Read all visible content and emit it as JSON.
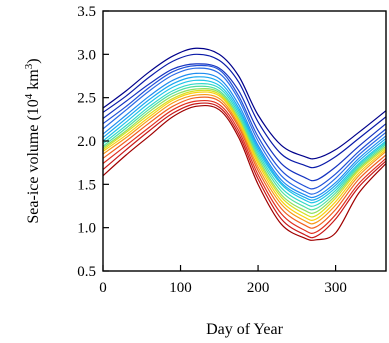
{
  "chart_data": {
    "type": "line",
    "title": "",
    "xlabel": "Day of Year",
    "ylabel": "Sea-ice volume (10⁴ km³)",
    "ylabel_parts": {
      "pre": "Sea-ice volume (10",
      "exp1": "4",
      "mid": " km",
      "exp2": "3",
      "post": ")"
    },
    "xlim": [
      0,
      365
    ],
    "ylim": [
      0.5,
      3.5
    ],
    "xticks": [
      0,
      100,
      200,
      300
    ],
    "xtick_labels": [
      "0",
      "100",
      "200",
      "300"
    ],
    "yticks": [
      0.5,
      1.0,
      1.5,
      2.0,
      2.5,
      3.0,
      3.5
    ],
    "ytick_labels": [
      "0.5",
      "1.0",
      "1.5",
      "2.0",
      "2.5",
      "3.0",
      "3.5"
    ],
    "grid": false,
    "legend": "none",
    "x": [
      0,
      30,
      60,
      90,
      120,
      150,
      175,
      200,
      230,
      260,
      275,
      300,
      330,
      365
    ],
    "series": [
      {
        "color": "#00008b",
        "values": [
          2.38,
          2.58,
          2.8,
          2.98,
          3.07,
          3.0,
          2.75,
          2.3,
          1.95,
          1.82,
          1.8,
          1.9,
          2.1,
          2.35
        ]
      },
      {
        "color": "#0a1aa8",
        "values": [
          2.33,
          2.52,
          2.74,
          2.92,
          3.0,
          2.93,
          2.68,
          2.22,
          1.85,
          1.72,
          1.7,
          1.82,
          2.03,
          2.28
        ]
      },
      {
        "color": "#1533c0",
        "values": [
          2.26,
          2.46,
          2.66,
          2.83,
          2.89,
          2.84,
          2.58,
          2.12,
          1.74,
          1.58,
          1.55,
          1.7,
          1.94,
          2.2
        ]
      },
      {
        "color": "#2050d8",
        "values": [
          2.2,
          2.4,
          2.62,
          2.8,
          2.87,
          2.82,
          2.52,
          2.05,
          1.66,
          1.48,
          1.46,
          1.62,
          1.88,
          2.14
        ]
      },
      {
        "color": "#2a6ce6",
        "values": [
          2.14,
          2.36,
          2.58,
          2.76,
          2.84,
          2.78,
          2.48,
          2.0,
          1.6,
          1.42,
          1.4,
          1.57,
          1.84,
          2.1
        ]
      },
      {
        "color": "#1e8cf0",
        "values": [
          2.08,
          2.3,
          2.52,
          2.7,
          2.78,
          2.72,
          2.42,
          1.95,
          1.55,
          1.38,
          1.36,
          1.52,
          1.8,
          2.06
        ]
      },
      {
        "color": "#18a8f0",
        "values": [
          2.04,
          2.26,
          2.48,
          2.66,
          2.74,
          2.68,
          2.38,
          1.92,
          1.52,
          1.35,
          1.33,
          1.49,
          1.77,
          2.03
        ]
      },
      {
        "color": "#20c4e8",
        "values": [
          2.0,
          2.22,
          2.44,
          2.62,
          2.7,
          2.64,
          2.35,
          1.89,
          1.5,
          1.32,
          1.3,
          1.46,
          1.74,
          2.0
        ]
      },
      {
        "color": "#30d8c8",
        "values": [
          1.97,
          2.18,
          2.4,
          2.58,
          2.66,
          2.61,
          2.32,
          1.86,
          1.46,
          1.28,
          1.26,
          1.43,
          1.72,
          1.98
        ]
      },
      {
        "color": "#50e0a0",
        "values": [
          1.94,
          2.15,
          2.37,
          2.55,
          2.63,
          2.58,
          2.29,
          1.83,
          1.42,
          1.24,
          1.22,
          1.4,
          1.7,
          1.96
        ]
      },
      {
        "color": "#90e060",
        "values": [
          1.92,
          2.12,
          2.34,
          2.52,
          2.6,
          2.56,
          2.26,
          1.8,
          1.38,
          1.2,
          1.18,
          1.37,
          1.68,
          1.94
        ]
      },
      {
        "color": "#d8e020",
        "values": [
          1.9,
          2.1,
          2.31,
          2.49,
          2.58,
          2.54,
          2.24,
          1.77,
          1.35,
          1.16,
          1.14,
          1.34,
          1.66,
          1.92
        ]
      },
      {
        "color": "#f8d010",
        "values": [
          1.88,
          2.07,
          2.28,
          2.47,
          2.56,
          2.52,
          2.22,
          1.74,
          1.31,
          1.12,
          1.1,
          1.3,
          1.63,
          1.9
        ]
      },
      {
        "color": "#f89818",
        "values": [
          1.85,
          2.04,
          2.25,
          2.44,
          2.53,
          2.49,
          2.19,
          1.7,
          1.27,
          1.08,
          1.06,
          1.26,
          1.6,
          1.88
        ]
      },
      {
        "color": "#f06020",
        "values": [
          1.8,
          2.0,
          2.21,
          2.4,
          2.5,
          2.46,
          2.16,
          1.66,
          1.22,
          1.03,
          1.01,
          1.21,
          1.56,
          1.84
        ]
      },
      {
        "color": "#e03020",
        "values": [
          1.74,
          1.95,
          2.16,
          2.36,
          2.46,
          2.42,
          2.12,
          1.61,
          1.16,
          0.97,
          0.95,
          1.15,
          1.51,
          1.8
        ]
      },
      {
        "color": "#c81818",
        "values": [
          1.67,
          1.9,
          2.12,
          2.32,
          2.43,
          2.39,
          2.08,
          1.56,
          1.1,
          0.92,
          0.9,
          1.1,
          1.47,
          1.77
        ]
      },
      {
        "color": "#a00000",
        "values": [
          1.6,
          1.84,
          2.06,
          2.28,
          2.4,
          2.36,
          2.04,
          1.5,
          1.04,
          0.88,
          0.86,
          0.94,
          1.4,
          1.74
        ]
      }
    ]
  }
}
